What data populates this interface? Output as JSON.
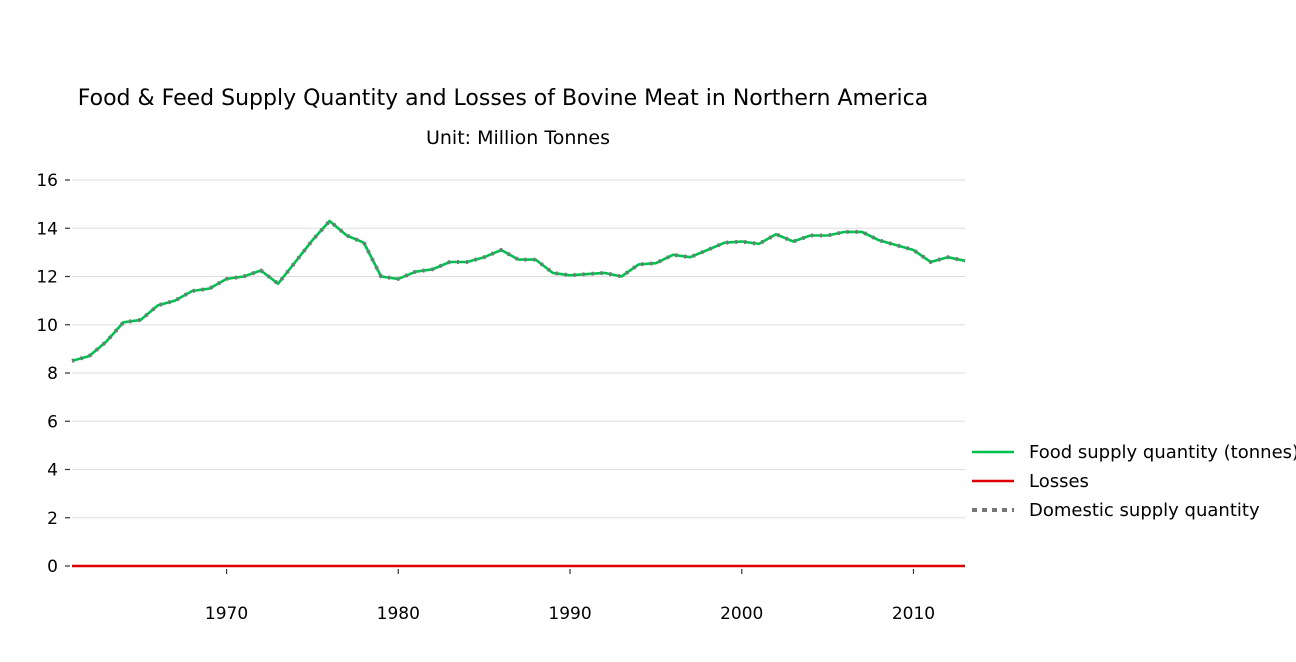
{
  "chart_data": {
    "type": "line",
    "title": "Food & Feed Supply Quantity and Losses of Bovine Meat in Northern America",
    "subtitle": "Unit: Million Tonnes",
    "xlabel": "",
    "ylabel": "",
    "xlim": [
      1961,
      2013
    ],
    "ylim": [
      0,
      16
    ],
    "yticks": [
      0,
      2,
      4,
      6,
      8,
      10,
      12,
      14,
      16
    ],
    "xticks": [
      1970,
      1980,
      1990,
      2000,
      2010
    ],
    "grid": "horizontal",
    "legend_position": "right",
    "x": [
      1961,
      1962,
      1963,
      1964,
      1965,
      1966,
      1967,
      1968,
      1969,
      1970,
      1971,
      1972,
      1973,
      1974,
      1975,
      1976,
      1977,
      1978,
      1979,
      1980,
      1981,
      1982,
      1983,
      1984,
      1985,
      1986,
      1987,
      1988,
      1989,
      1990,
      1991,
      1992,
      1993,
      1994,
      1995,
      1996,
      1997,
      1998,
      1999,
      2000,
      2001,
      2002,
      2003,
      2004,
      2005,
      2006,
      2007,
      2008,
      2009,
      2010,
      2011,
      2012,
      2013
    ],
    "series": [
      {
        "name": "Food supply quantity (tonnes)",
        "color": "#00c050",
        "style": "solid",
        "values": [
          8.5,
          8.7,
          9.3,
          10.1,
          10.2,
          10.8,
          11.0,
          11.4,
          11.5,
          11.9,
          12.0,
          12.25,
          11.7,
          12.6,
          13.5,
          14.3,
          13.7,
          13.4,
          12.0,
          11.9,
          12.2,
          12.3,
          12.6,
          12.6,
          12.8,
          13.1,
          12.7,
          12.7,
          12.15,
          12.05,
          12.1,
          12.15,
          12.0,
          12.5,
          12.55,
          12.9,
          12.8,
          13.1,
          13.4,
          13.45,
          13.35,
          13.75,
          13.45,
          13.7,
          13.7,
          13.85,
          13.85,
          13.5,
          13.3,
          13.1,
          12.6,
          12.8,
          12.65
        ]
      },
      {
        "name": "Losses",
        "color": "#dd0000",
        "style": "solid",
        "values": [
          0,
          0,
          0,
          0,
          0,
          0,
          0,
          0,
          0,
          0,
          0,
          0,
          0,
          0,
          0,
          0,
          0,
          0,
          0,
          0,
          0,
          0,
          0,
          0,
          0,
          0,
          0,
          0,
          0,
          0,
          0,
          0,
          0,
          0,
          0,
          0,
          0,
          0,
          0,
          0,
          0,
          0,
          0,
          0,
          0,
          0,
          0,
          0,
          0,
          0,
          0,
          0,
          0
        ]
      },
      {
        "name": "Domestic supply quantity",
        "color": "#777777",
        "style": "dotted",
        "values": [
          8.5,
          8.7,
          9.3,
          10.1,
          10.2,
          10.8,
          11.0,
          11.4,
          11.5,
          11.9,
          12.0,
          12.25,
          11.7,
          12.6,
          13.5,
          14.3,
          13.7,
          13.4,
          12.0,
          11.9,
          12.2,
          12.3,
          12.6,
          12.6,
          12.8,
          13.1,
          12.7,
          12.7,
          12.15,
          12.05,
          12.1,
          12.15,
          12.0,
          12.5,
          12.55,
          12.9,
          12.8,
          13.1,
          13.4,
          13.45,
          13.35,
          13.75,
          13.45,
          13.7,
          13.7,
          13.85,
          13.85,
          13.5,
          13.3,
          13.1,
          12.6,
          12.8,
          12.65
        ]
      }
    ]
  }
}
